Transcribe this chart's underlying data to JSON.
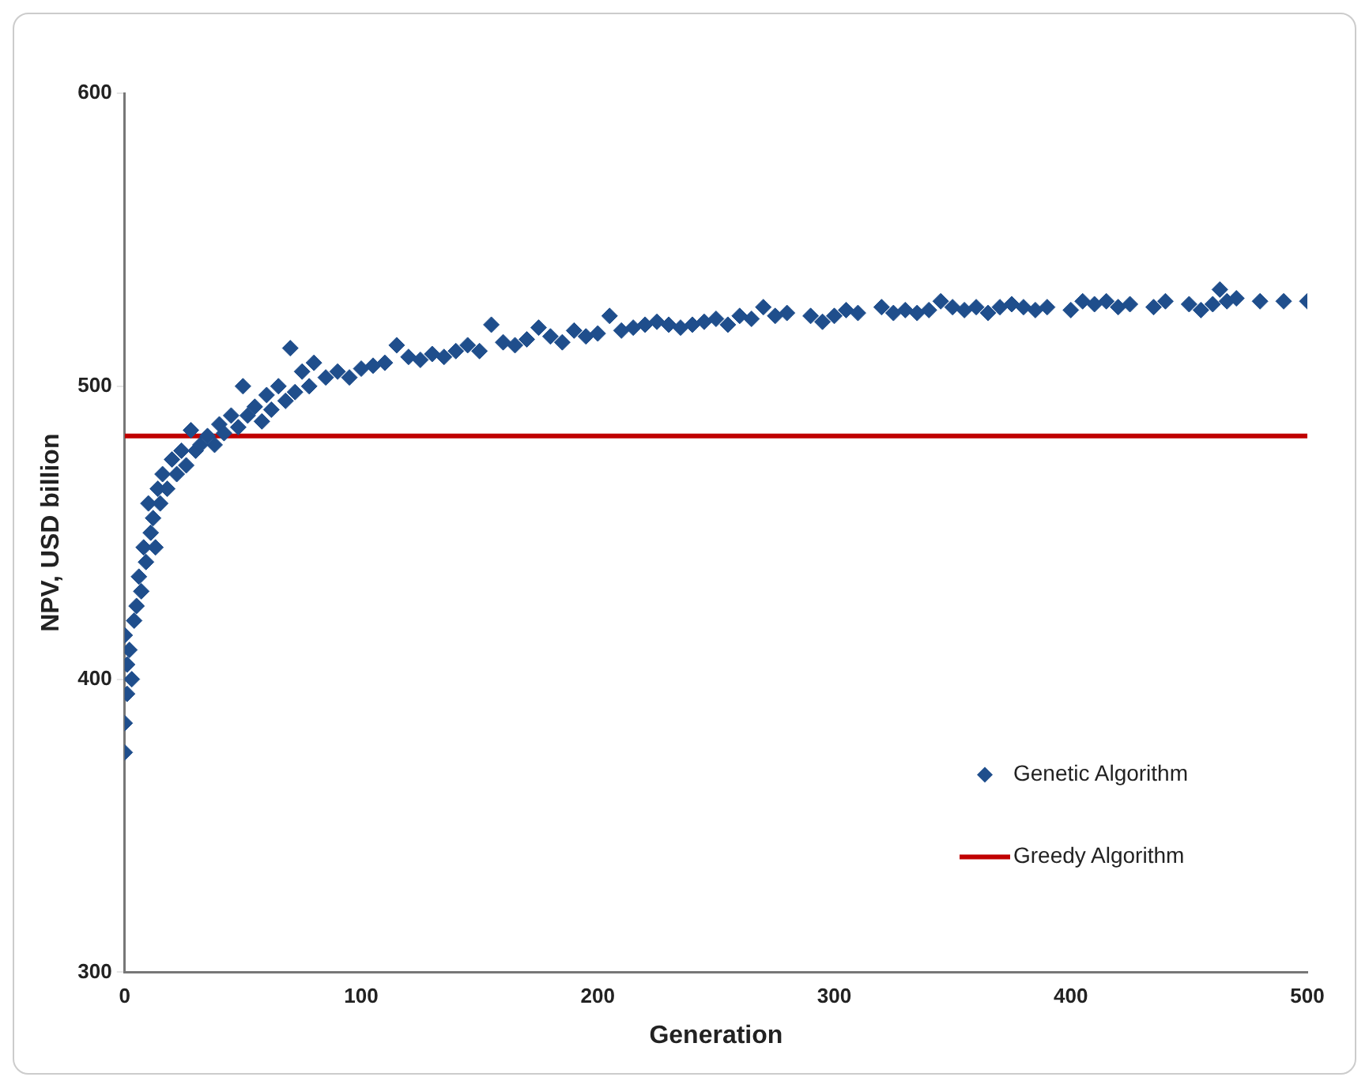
{
  "chart_data": {
    "type": "scatter",
    "xlabel": "Generation",
    "ylabel": "NPV, USD billion",
    "xlim": [
      0,
      500
    ],
    "ylim": [
      300,
      600
    ],
    "xticks": [
      0,
      100,
      200,
      300,
      400,
      500
    ],
    "yticks": [
      300,
      400,
      500,
      600
    ],
    "grid": false,
    "legend": "bottom right",
    "marker": "diamond",
    "series": [
      {
        "name": "Genetic Algorithm",
        "color": "#1f4e8c",
        "x": [
          0,
          0,
          1,
          1,
          0,
          2,
          3,
          4,
          5,
          6,
          7,
          8,
          9,
          10,
          11,
          12,
          13,
          14,
          15,
          16,
          18,
          20,
          22,
          24,
          26,
          28,
          30,
          32,
          35,
          38,
          40,
          42,
          45,
          48,
          50,
          52,
          55,
          58,
          60,
          62,
          65,
          68,
          70,
          72,
          75,
          78,
          80,
          85,
          90,
          95,
          100,
          105,
          110,
          115,
          120,
          125,
          130,
          135,
          140,
          145,
          150,
          155,
          160,
          165,
          170,
          175,
          180,
          185,
          190,
          195,
          200,
          205,
          210,
          215,
          220,
          225,
          230,
          235,
          240,
          245,
          250,
          255,
          260,
          265,
          270,
          275,
          280,
          290,
          295,
          300,
          305,
          310,
          320,
          325,
          330,
          335,
          340,
          345,
          350,
          355,
          360,
          365,
          370,
          375,
          380,
          385,
          390,
          400,
          405,
          410,
          415,
          420,
          425,
          435,
          440,
          450,
          455,
          460,
          463,
          466,
          470,
          480,
          490,
          500
        ],
        "values": [
          375,
          385,
          395,
          405,
          415,
          410,
          400,
          420,
          425,
          435,
          430,
          445,
          440,
          460,
          450,
          455,
          445,
          465,
          460,
          470,
          465,
          475,
          470,
          478,
          473,
          485,
          478,
          480,
          483,
          480,
          487,
          484,
          490,
          486,
          500,
          490,
          493,
          488,
          497,
          492,
          500,
          495,
          513,
          498,
          505,
          500,
          508,
          503,
          505,
          503,
          506,
          507,
          508,
          514,
          510,
          509,
          511,
          510,
          512,
          514,
          512,
          521,
          515,
          514,
          516,
          520,
          517,
          515,
          519,
          517,
          518,
          524,
          519,
          520,
          521,
          522,
          521,
          520,
          521,
          522,
          523,
          521,
          524,
          523,
          527,
          524,
          525,
          524,
          522,
          524,
          526,
          525,
          527,
          525,
          526,
          525,
          526,
          529,
          527,
          526,
          527,
          525,
          527,
          528,
          527,
          526,
          527,
          526,
          529,
          528,
          529,
          527,
          528,
          527,
          529,
          528,
          526,
          528,
          533,
          529,
          530,
          529,
          529,
          529
        ]
      },
      {
        "name": "Greedy Algorithm",
        "type": "line",
        "color": "#c00000",
        "x": [
          0,
          500
        ],
        "values": [
          483,
          483
        ],
        "marker": "none",
        "line_style": "solid"
      }
    ]
  }
}
